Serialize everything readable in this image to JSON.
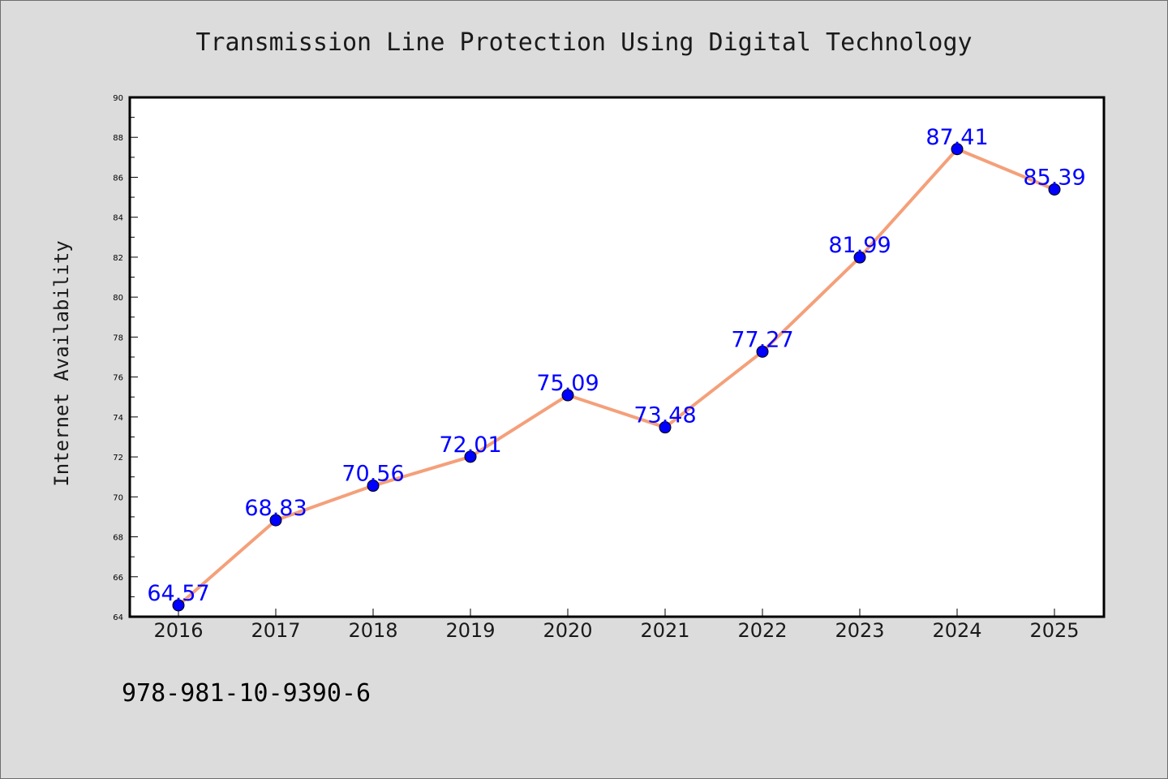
{
  "chart_data": {
    "type": "line",
    "title": "Transmission Line Protection Using Digital Technology",
    "xlabel": "",
    "ylabel": "Internet Availability",
    "categories": [
      "2016",
      "2017",
      "2018",
      "2019",
      "2020",
      "2021",
      "2022",
      "2023",
      "2024",
      "2025"
    ],
    "series": [
      {
        "values": [
          64.57,
          68.83,
          70.56,
          72.01,
          75.09,
          73.48,
          77.27,
          81.99,
          87.41,
          85.39
        ],
        "labels": [
          "64.57",
          "68.83",
          "70.56",
          "72.01",
          "75.09",
          "73.48",
          "77.27",
          "81.99",
          "87.41",
          "85.39"
        ]
      }
    ],
    "ylim": [
      64,
      90
    ],
    "yticks": [
      "64",
      "66",
      "68",
      "70",
      "72",
      "74",
      "76",
      "78",
      "80",
      "82",
      "84",
      "86",
      "88",
      "90"
    ],
    "grid": false,
    "legend": "none",
    "colors": {
      "line": "#f4a07a",
      "marker": "#0000ff",
      "data_label": "#0000ff",
      "background": "#dcdcdc",
      "plot_area": "#ffffff"
    }
  },
  "footer": {
    "text": "978-981-10-9390-6"
  }
}
